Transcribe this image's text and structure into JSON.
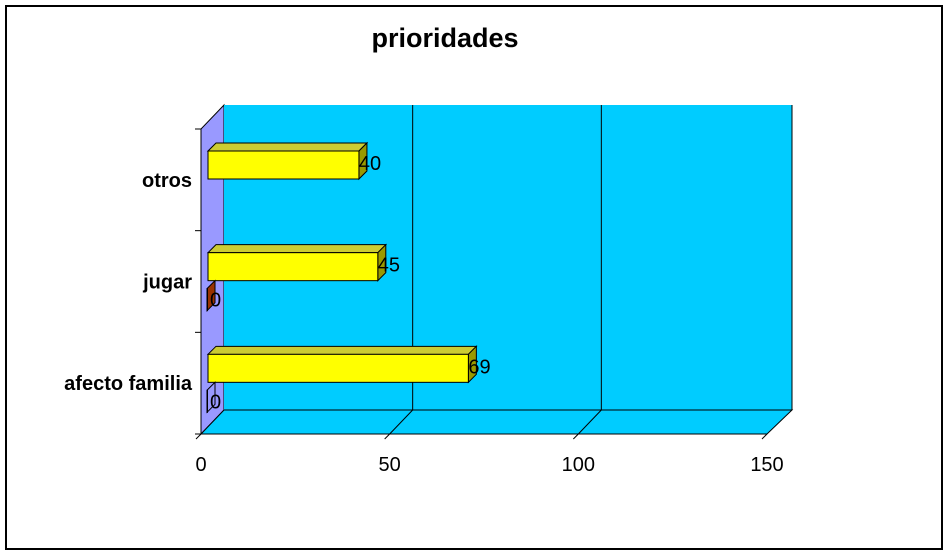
{
  "chart_data": {
    "type": "bar",
    "orientation": "horizontal",
    "style": "3d",
    "title": "prioridades",
    "xlabel": "",
    "ylabel": "",
    "categories": [
      "afecto familia",
      "jugar",
      "otros"
    ],
    "series": [
      {
        "values": [
          0,
          0,
          null
        ],
        "color": "#9999ff"
      },
      {
        "values": [
          69,
          45,
          40
        ],
        "color": "#ffff00"
      }
    ],
    "xlim": [
      0,
      150
    ],
    "xticks": [
      "0",
      "50",
      "100",
      "150"
    ],
    "grid": true,
    "legend": "none",
    "colors": {
      "plot_background": "#00ccff",
      "side_wall": "#9999ff",
      "bar_front": "#ffff00",
      "bar_side": "#999900",
      "bar_top": "#cccc33",
      "small_bar_jugar": "#993300"
    }
  }
}
